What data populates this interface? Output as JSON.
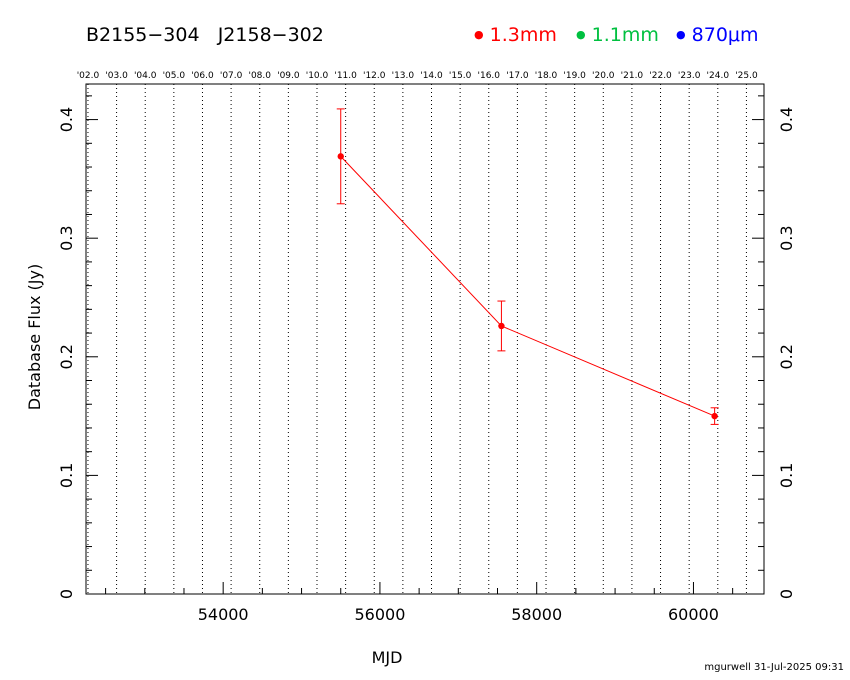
{
  "header": {
    "source_names": [
      "B2155−304",
      "J2158−302"
    ],
    "legend": [
      {
        "label": "1.3mm",
        "color": "#ff0000"
      },
      {
        "label": "1.1mm",
        "color": "#00c040"
      },
      {
        "label": "870μm",
        "color": "#0000ff"
      }
    ]
  },
  "footer": {
    "credit": "mgurwell 31-Jul-2025 09:31"
  },
  "chart_data": {
    "type": "scatter",
    "title": "B2155−304   J2158−302",
    "xlabel": "MJD",
    "ylabel": "Database Flux (Jy)",
    "xlim": [
      52250,
      60900
    ],
    "ylim": [
      0,
      0.43
    ],
    "x_ticks": [
      54000,
      56000,
      58000,
      60000
    ],
    "y_ticks": [
      0,
      0.1,
      0.2,
      0.3,
      0.4
    ],
    "y_tick_labels": [
      "0",
      "0.1",
      "0.2",
      "0.3",
      "0.4"
    ],
    "top_axis_labels": [
      "'02.0",
      "'03.0",
      "'04.0",
      "'05.0",
      "'06.0",
      "'07.0",
      "'08.0",
      "'09.0",
      "'10.0",
      "'11.0",
      "'12.0",
      "'13.0",
      "'14.0",
      "'15.0",
      "'16.0",
      "'17.0",
      "'18.0",
      "'19.0",
      "'20.0",
      "'21.0",
      "'22.0",
      "'23.0",
      "'24.0",
      "'25.0"
    ],
    "grid": "vertical dotted lines at each year",
    "series": [
      {
        "name": "1.3mm",
        "color": "#ff0000",
        "connected": true,
        "points": [
          {
            "x": 55500,
            "y": 0.369,
            "err": 0.04
          },
          {
            "x": 57550,
            "y": 0.226,
            "err": 0.021
          },
          {
            "x": 60270,
            "y": 0.15,
            "err": 0.007
          }
        ]
      }
    ]
  }
}
